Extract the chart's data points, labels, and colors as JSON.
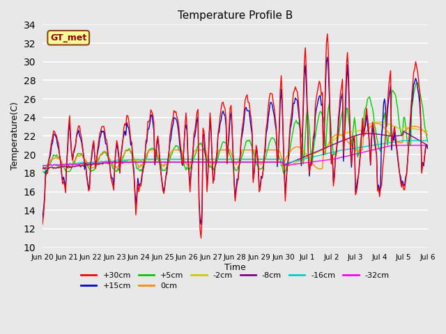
{
  "title": "Temperature Profile B",
  "xlabel": "Time",
  "ylabel": "Temperature(C)",
  "ylim": [
    10,
    34
  ],
  "xlim": [
    0,
    384
  ],
  "background_color": "#e8e8e8",
  "plot_bg_color": "#e8e8e8",
  "grid_color": "white",
  "annotation_text": "GT_met",
  "annotation_bg": "#ffff99",
  "annotation_border": "#8b4513",
  "series_colors": {
    "+30cm": "#ff0000",
    "+15cm": "#0000cc",
    "+5cm": "#00cc00",
    "0cm": "#ff8800",
    "-2cm": "#cccc00",
    "-8cm": "#880088",
    "-16cm": "#00cccc",
    "-32cm": "#ff00ff"
  },
  "tick_labels": [
    "Jun 20",
    "Jun 21",
    "Jun 22",
    "Jun 23",
    "Jun 24",
    "Jun 25",
    "Jun 26",
    "Jun 27",
    "Jun 28",
    "Jun 29",
    "Jun 30",
    "Jul 1",
    "Jul 2",
    "Jul 3",
    "Jul 4",
    "Jul 5",
    "Jul 6"
  ],
  "tick_positions": [
    0,
    24,
    48,
    72,
    96,
    120,
    144,
    168,
    192,
    216,
    240,
    264,
    288,
    312,
    336,
    360,
    384
  ]
}
